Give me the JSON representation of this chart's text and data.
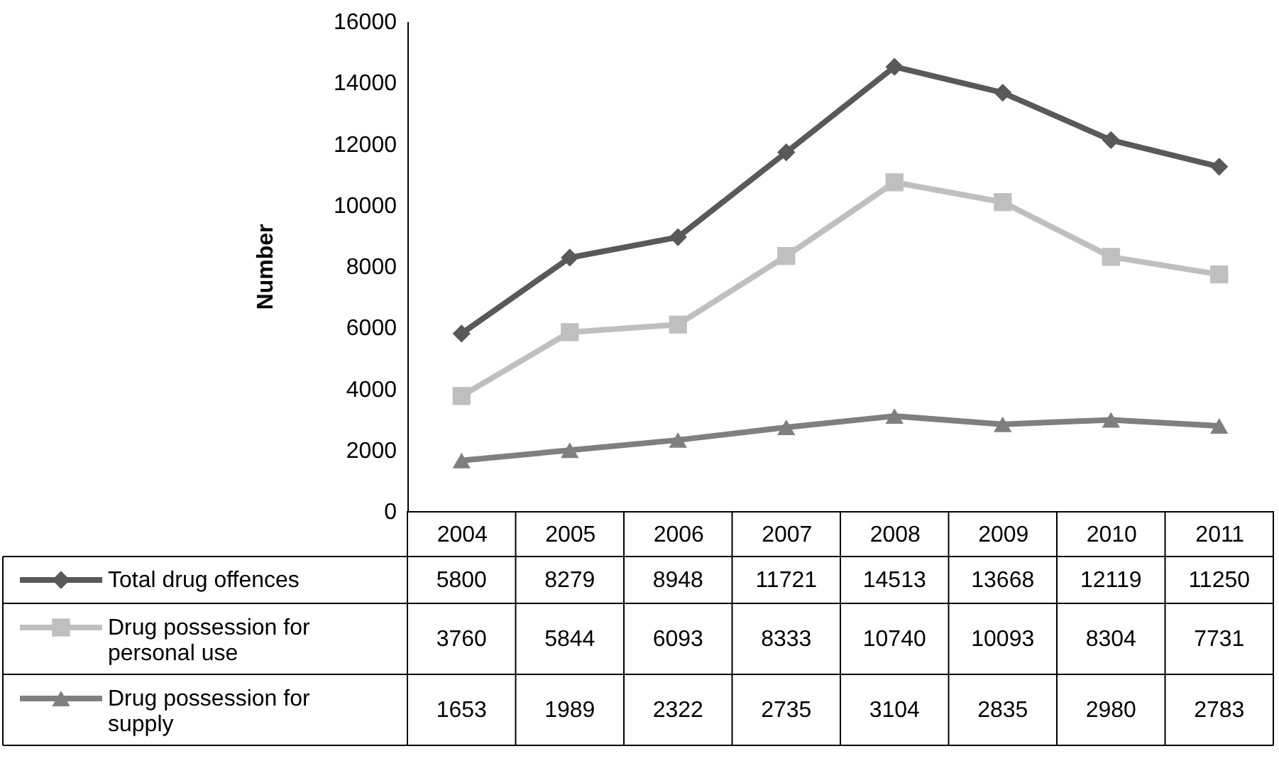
{
  "chart_data": {
    "type": "line",
    "ylabel": "Number",
    "categories": [
      "2004",
      "2005",
      "2006",
      "2007",
      "2008",
      "2009",
      "2010",
      "2011"
    ],
    "series": [
      {
        "name": "Total drug offences",
        "color": "#595959",
        "marker": "diamond",
        "values": [
          5800,
          8279,
          8948,
          11721,
          14513,
          13668,
          12119,
          11250
        ]
      },
      {
        "name": "Drug possession for personal use",
        "color": "#bfbfbf",
        "marker": "square",
        "values": [
          3760,
          5844,
          6093,
          8333,
          10740,
          10093,
          8304,
          7731
        ]
      },
      {
        "name": "Drug possession for supply",
        "color": "#7f7f7f",
        "marker": "triangle",
        "values": [
          1653,
          1989,
          2322,
          2735,
          3104,
          2835,
          2980,
          2783
        ]
      }
    ],
    "ylim": [
      0,
      16000
    ],
    "yticks": [
      0,
      2000,
      4000,
      6000,
      8000,
      10000,
      12000,
      14000,
      16000
    ],
    "grid": false,
    "legend": "bottom",
    "data_labels": true,
    "line_style": "solid"
  }
}
